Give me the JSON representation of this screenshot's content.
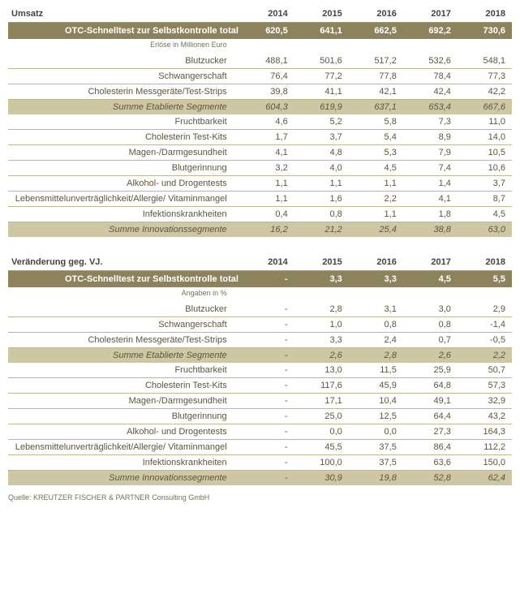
{
  "colors": {
    "total_bg": "#8c825c",
    "total_fg": "#ffffff",
    "summary_bg": "#cdc7a3",
    "row_border": "#bdb794",
    "text_main": "#5c563c",
    "text_subtitle": "#77704f",
    "header_border": "#999999",
    "header_text": "#444444"
  },
  "years": [
    "2014",
    "2015",
    "2016",
    "2017",
    "2018"
  ],
  "block_a": {
    "header_label": "Umsatz",
    "total_label": "OTC-Schnelltest zur Selbstkontrolle total",
    "total_values": [
      "620,5",
      "641,1",
      "662,5",
      "692,2",
      "730,6"
    ],
    "subtitle": "Erlöse in Millionen Euro",
    "rows1": [
      {
        "label": "Blutzucker",
        "v": [
          "488,1",
          "501,6",
          "517,2",
          "532,6",
          "548,1"
        ]
      },
      {
        "label": "Schwangerschaft",
        "v": [
          "76,4",
          "77,2",
          "77,8",
          "78,4",
          "77,3"
        ]
      },
      {
        "label": "Cholesterin Messgeräte/Test-Strips",
        "v": [
          "39,8",
          "41,1",
          "42,1",
          "42,4",
          "42,2"
        ]
      }
    ],
    "summary1": {
      "label": "Summe Etablierte Segmente",
      "v": [
        "604,3",
        "619,9",
        "637,1",
        "653,4",
        "667,6"
      ]
    },
    "rows2": [
      {
        "label": "Fruchtbarkeit",
        "v": [
          "4,6",
          "5,2",
          "5,8",
          "7,3",
          "11,0"
        ]
      },
      {
        "label": "Cholesterin Test-Kits",
        "v": [
          "1,7",
          "3,7",
          "5,4",
          "8,9",
          "14,0"
        ]
      },
      {
        "label": "Magen-/Darmgesundheit",
        "v": [
          "4,1",
          "4,8",
          "5,3",
          "7,9",
          "10,5"
        ]
      },
      {
        "label": "Blutgerinnung",
        "v": [
          "3,2",
          "4,0",
          "4,5",
          "7,4",
          "10,6"
        ]
      },
      {
        "label": "Alkohol- und Drogentests",
        "v": [
          "1,1",
          "1,1",
          "1,1",
          "1,4",
          "3,7"
        ]
      },
      {
        "label": "Lebensmittelunverträglichkeit/Allergie/ Vitaminmangel",
        "v": [
          "1,1",
          "1,6",
          "2,2",
          "4,1",
          "8,7"
        ]
      },
      {
        "label": "Infektionskrankheiten",
        "v": [
          "0,4",
          "0,8",
          "1,1",
          "1,8",
          "4,5"
        ]
      }
    ],
    "summary2": {
      "label": "Summe Innovationssegmente",
      "v": [
        "16,2",
        "21,2",
        "25,4",
        "38,8",
        "63,0"
      ]
    }
  },
  "block_b": {
    "header_label": "Veränderung geg. VJ.",
    "total_label": "OTC-Schnelltest zur Selbstkontrolle total",
    "total_values": [
      "-",
      "3,3",
      "3,3",
      "4,5",
      "5,5"
    ],
    "subtitle": "Angaben in %",
    "rows1": [
      {
        "label": "Blutzucker",
        "v": [
          "-",
          "2,8",
          "3,1",
          "3,0",
          "2,9"
        ]
      },
      {
        "label": "Schwangerschaft",
        "v": [
          "-",
          "1,0",
          "0,8",
          "0,8",
          "-1,4"
        ]
      },
      {
        "label": "Cholesterin Messgeräte/Test-Strips",
        "v": [
          "-",
          "3,3",
          "2,4",
          "0,7",
          "-0,5"
        ]
      }
    ],
    "summary1": {
      "label": "Summe Etablierte Segmente",
      "v": [
        "-",
        "2,6",
        "2,8",
        "2,6",
        "2,2"
      ]
    },
    "rows2": [
      {
        "label": "Fruchtbarkeit",
        "v": [
          "-",
          "13,0",
          "11,5",
          "25,9",
          "50,7"
        ]
      },
      {
        "label": "Cholesterin Test-Kits",
        "v": [
          "-",
          "117,6",
          "45,9",
          "64,8",
          "57,3"
        ]
      },
      {
        "label": "Magen-/Darmgesundheit",
        "v": [
          "-",
          "17,1",
          "10,4",
          "49,1",
          "32,9"
        ]
      },
      {
        "label": "Blutgerinnung",
        "v": [
          "-",
          "25,0",
          "12,5",
          "64,4",
          "43,2"
        ]
      },
      {
        "label": "Alkohol- und Drogentests",
        "v": [
          "-",
          "0,0",
          "0,0",
          "27,3",
          "164,3"
        ]
      },
      {
        "label": "Lebensmittelunverträglichkeit/Allergie/ Vitaminmangel",
        "v": [
          "-",
          "45,5",
          "37,5",
          "86,4",
          "112,2"
        ]
      },
      {
        "label": "Infektionskrankheiten",
        "v": [
          "-",
          "100,0",
          "37,5",
          "63,6",
          "150,0"
        ]
      }
    ],
    "summary2": {
      "label": "Summe Innovationssegmente",
      "v": [
        "-",
        "30,9",
        "19,8",
        "52,8",
        "62,4"
      ]
    }
  },
  "source": "Quelle: KREUTZER FISCHER & PARTNER Consulting GmbH"
}
